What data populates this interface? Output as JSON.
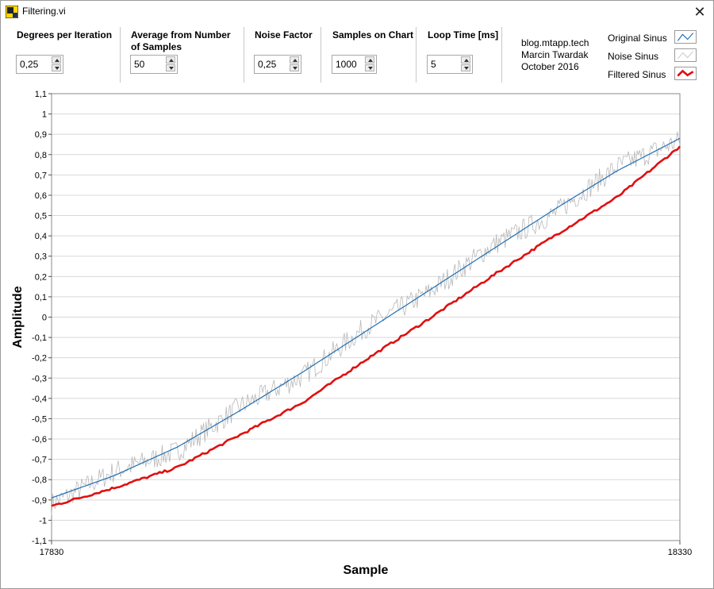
{
  "window": {
    "title": "Filtering.vi",
    "close_glyph": "✕"
  },
  "controls": {
    "degrees": {
      "label": "Degrees per Iteration",
      "value": "0,25"
    },
    "average": {
      "label_line1": "Average from Number",
      "label_line2": "of Samples",
      "value": "50"
    },
    "noise": {
      "label": "Noise Factor",
      "value": "0,25"
    },
    "samples": {
      "label": "Samples on Chart",
      "value": "1000"
    },
    "loop": {
      "label": "Loop Time [ms]",
      "value": "5"
    }
  },
  "credit": {
    "line1": "blog.mtapp.tech",
    "line2": "Marcin Twardak",
    "line3": "October 2016"
  },
  "legend": [
    {
      "label": "Original Sinus",
      "icon": "line-swatch-icon"
    },
    {
      "label": "Noise Sinus",
      "icon": "line-swatch-icon"
    },
    {
      "label": "Filtered Sinus",
      "icon": "line-swatch-icon"
    }
  ],
  "colors": {
    "original": "#1f6fb4",
    "noise": "#b8b8b8",
    "filtered": "#e01010",
    "grid": "#d8d8d8"
  },
  "chart_data": {
    "type": "line",
    "xlabel": "Sample",
    "ylabel": "Amplitude",
    "xlim": [
      17830,
      18330
    ],
    "ylim": [
      -1.1,
      1.1
    ],
    "x_tick_labels": [
      "17830",
      "18330"
    ],
    "y_tick_labels": [
      "1,1",
      "1",
      "0,9",
      "0,8",
      "0,7",
      "0,6",
      "0,5",
      "0,4",
      "0,3",
      "0,2",
      "0,1",
      "0",
      "-0,1",
      "-0,2",
      "-0,3",
      "-0,4",
      "-0,5",
      "-0,6",
      "-0,7",
      "-0,8",
      "-0,9",
      "-1",
      "-1,1"
    ],
    "y_tick_values": [
      1.1,
      1.0,
      0.9,
      0.8,
      0.7,
      0.6,
      0.5,
      0.4,
      0.3,
      0.2,
      0.1,
      0,
      -0.1,
      -0.2,
      -0.3,
      -0.4,
      -0.5,
      -0.6,
      -0.7,
      -0.8,
      -0.9,
      -1.0,
      -1.1
    ],
    "grid": true,
    "legend_position": "top-right",
    "series": [
      {
        "name": "Original Sinus",
        "x": [
          17830,
          17880,
          17930,
          17980,
          18030,
          18080,
          18130,
          18180,
          18230,
          18280,
          18330
        ],
        "y": [
          -0.89,
          -0.78,
          -0.64,
          -0.46,
          -0.27,
          -0.07,
          0.13,
          0.33,
          0.53,
          0.72,
          0.88
        ]
      },
      {
        "name": "Noise Sinus",
        "x": [
          17830,
          17880,
          17930,
          17980,
          18030,
          18080,
          18130,
          18180,
          18230,
          18280,
          18330
        ],
        "y": [
          -0.92,
          -0.76,
          -0.66,
          -0.44,
          -0.29,
          -0.05,
          0.12,
          0.35,
          0.51,
          0.74,
          0.87
        ]
      },
      {
        "name": "Filtered Sinus",
        "x": [
          17830,
          17880,
          17930,
          17980,
          18030,
          18080,
          18130,
          18180,
          18230,
          18280,
          18330
        ],
        "y": [
          -0.93,
          -0.84,
          -0.74,
          -0.58,
          -0.42,
          -0.21,
          -0.01,
          0.2,
          0.4,
          0.59,
          0.84
        ]
      }
    ]
  }
}
